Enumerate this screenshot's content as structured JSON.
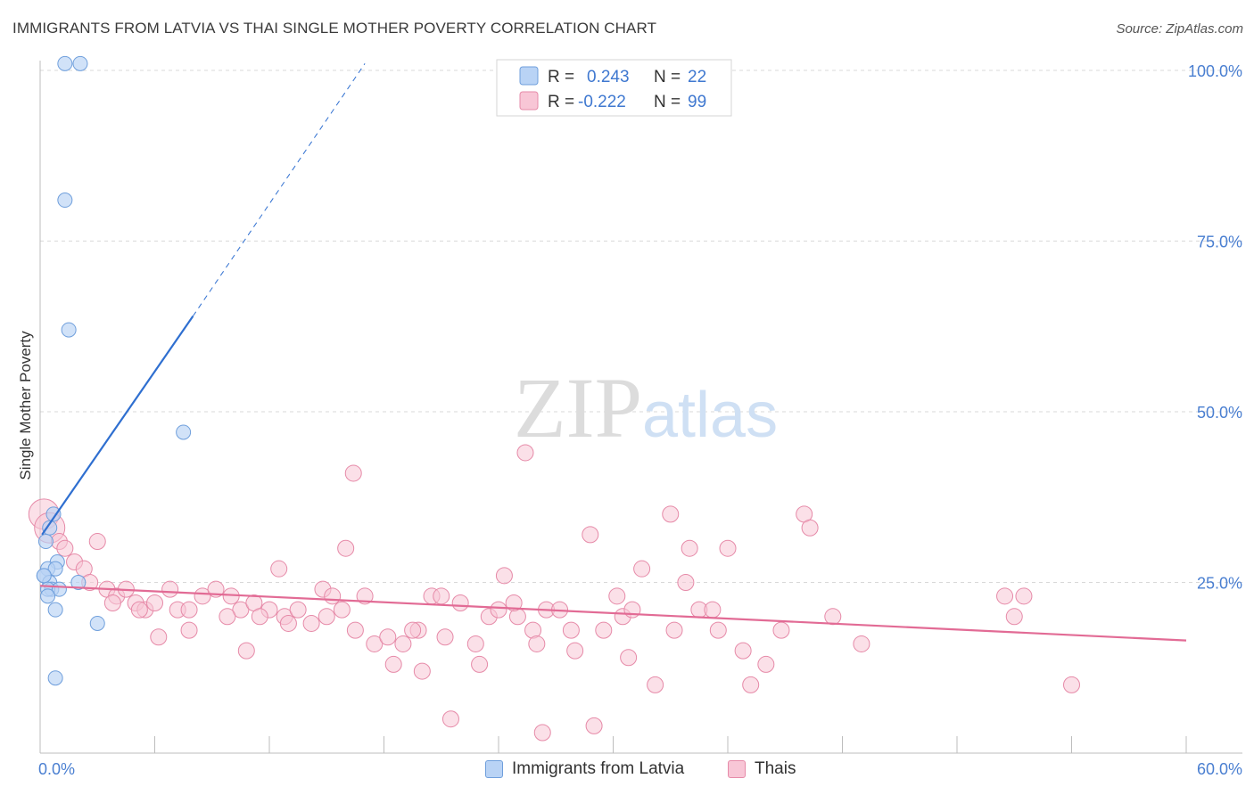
{
  "header": {
    "title": "IMMIGRANTS FROM LATVIA VS THAI SINGLE MOTHER POVERTY CORRELATION CHART",
    "source": "Source: ZipAtlas.com"
  },
  "watermark": {
    "zip": "ZIP",
    "atlas": "atlas"
  },
  "colors": {
    "latvia_fill": "#b9d3f5",
    "latvia_stroke": "#6f9fdc",
    "latvia_line": "#2f6fd0",
    "thai_fill": "#f8c6d6",
    "thai_stroke": "#e68aa8",
    "thai_line": "#e26b95",
    "axis_text": "#4a7fd1",
    "grid": "#d9d9d9"
  },
  "legend_box": {
    "rows": [
      {
        "r_label": "R =",
        "r_value": "0.243",
        "n_label": "N =",
        "n_value": "22"
      },
      {
        "r_label": "R =",
        "r_value": "-0.222",
        "n_label": "N =",
        "n_value": "99"
      }
    ]
  },
  "bottom_legend": {
    "latvia": "Immigrants from Latvia",
    "thai": "Thais"
  },
  "chart_data": {
    "type": "scatter",
    "xlabel": "",
    "ylabel": "Single Mother Poverty",
    "xlim": [
      0,
      60
    ],
    "ylim": [
      0,
      100
    ],
    "x_tick_labels": [
      "0.0%",
      "60.0%"
    ],
    "y_tick_labels": [
      "25.0%",
      "50.0%",
      "75.0%",
      "100.0%"
    ],
    "y_ticks": [
      25,
      50,
      75,
      100
    ],
    "grid": true,
    "legend_position": "top-center",
    "series": [
      {
        "name": "Immigrants from Latvia",
        "r": 0.243,
        "n": 22,
        "trend": {
          "x0": 0.1,
          "y0": 32,
          "x1": 8.0,
          "y1": 64,
          "dash_to_x": 17.0,
          "dash_to_y": 101
        },
        "points": [
          [
            1.3,
            101
          ],
          [
            2.1,
            101
          ],
          [
            1.3,
            81
          ],
          [
            1.5,
            62
          ],
          [
            7.5,
            47
          ],
          [
            0.7,
            35
          ],
          [
            0.5,
            33
          ],
          [
            0.3,
            31
          ],
          [
            0.9,
            28
          ],
          [
            0.4,
            27
          ],
          [
            0.8,
            27
          ],
          [
            0.2,
            26
          ],
          [
            0.5,
            25
          ],
          [
            2.0,
            25
          ],
          [
            0.6,
            24
          ],
          [
            0.4,
            24
          ],
          [
            1.0,
            24
          ],
          [
            0.8,
            21
          ],
          [
            3.0,
            19
          ],
          [
            0.8,
            11
          ],
          [
            0.2,
            26
          ],
          [
            0.4,
            23
          ]
        ]
      },
      {
        "name": "Thais",
        "r": -0.222,
        "n": 99,
        "trend": {
          "x0": 0,
          "y0": 24.5,
          "x1": 60,
          "y1": 16.5
        },
        "points": [
          [
            0.2,
            35
          ],
          [
            0.5,
            33
          ],
          [
            1.0,
            31
          ],
          [
            1.3,
            30
          ],
          [
            1.8,
            28
          ],
          [
            2.3,
            27
          ],
          [
            3.0,
            31
          ],
          [
            2.6,
            25
          ],
          [
            3.5,
            24
          ],
          [
            4.0,
            23
          ],
          [
            4.5,
            24
          ],
          [
            5.0,
            22
          ],
          [
            5.5,
            21
          ],
          [
            6.0,
            22
          ],
          [
            6.8,
            24
          ],
          [
            7.2,
            21
          ],
          [
            7.8,
            21
          ],
          [
            8.5,
            23
          ],
          [
            9.2,
            24
          ],
          [
            10.0,
            23
          ],
          [
            10.5,
            21
          ],
          [
            11.2,
            22
          ],
          [
            12.0,
            21
          ],
          [
            12.8,
            20
          ],
          [
            13.5,
            21
          ],
          [
            14.2,
            19
          ],
          [
            15.0,
            20
          ],
          [
            15.8,
            21
          ],
          [
            16.5,
            18
          ],
          [
            17.0,
            23
          ],
          [
            17.5,
            16
          ],
          [
            18.2,
            17
          ],
          [
            19.0,
            16
          ],
          [
            19.8,
            18
          ],
          [
            20.5,
            23
          ],
          [
            21.2,
            17
          ],
          [
            22.0,
            22
          ],
          [
            22.8,
            16
          ],
          [
            23.5,
            20
          ],
          [
            24.3,
            26
          ],
          [
            25.0,
            20
          ],
          [
            25.8,
            18
          ],
          [
            26.5,
            21
          ],
          [
            27.2,
            21
          ],
          [
            28.0,
            15
          ],
          [
            28.8,
            32
          ],
          [
            29.5,
            18
          ],
          [
            30.2,
            23
          ],
          [
            30.8,
            14
          ],
          [
            31.5,
            27
          ],
          [
            32.2,
            10
          ],
          [
            33.0,
            35
          ],
          [
            33.8,
            25
          ],
          [
            34.5,
            21
          ],
          [
            35.2,
            21
          ],
          [
            36.0,
            30
          ],
          [
            16.4,
            41
          ],
          [
            25.4,
            44
          ],
          [
            24.0,
            21
          ],
          [
            26.0,
            16
          ],
          [
            7.8,
            18
          ],
          [
            10.8,
            15
          ],
          [
            12.5,
            27
          ],
          [
            18.5,
            13
          ],
          [
            20.0,
            12
          ],
          [
            21.5,
            5
          ],
          [
            23.0,
            13
          ],
          [
            24.8,
            22
          ],
          [
            26.3,
            3
          ],
          [
            27.8,
            18
          ],
          [
            29.0,
            4
          ],
          [
            30.5,
            20
          ],
          [
            31.0,
            21
          ],
          [
            33.2,
            18
          ],
          [
            34.0,
            30
          ],
          [
            35.5,
            18
          ],
          [
            36.8,
            15
          ],
          [
            37.2,
            10
          ],
          [
            38.0,
            13
          ],
          [
            38.8,
            18
          ],
          [
            40.0,
            35
          ],
          [
            40.3,
            33
          ],
          [
            41.5,
            20
          ],
          [
            43.0,
            16
          ],
          [
            50.5,
            23
          ],
          [
            51.0,
            20
          ],
          [
            51.5,
            23
          ],
          [
            54.0,
            10
          ],
          [
            6.2,
            17
          ],
          [
            3.8,
            22
          ],
          [
            5.2,
            21
          ],
          [
            9.8,
            20
          ],
          [
            11.5,
            20
          ],
          [
            14.8,
            24
          ],
          [
            16.0,
            30
          ],
          [
            19.5,
            18
          ],
          [
            21.0,
            23
          ],
          [
            13.0,
            19
          ],
          [
            15.3,
            23
          ]
        ]
      }
    ]
  }
}
